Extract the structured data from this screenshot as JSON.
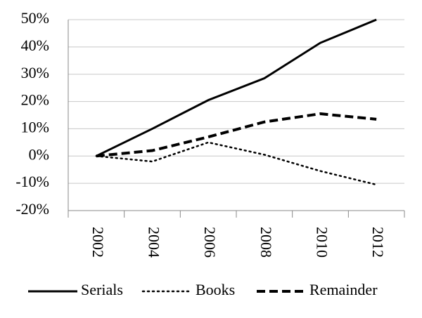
{
  "chart_data": {
    "type": "line",
    "categories": [
      "2002",
      "2004",
      "2006",
      "2008",
      "2010",
      "2012"
    ],
    "series": [
      {
        "name": "Serials",
        "color": "#000000",
        "dash": "solid",
        "values": [
          0,
          10,
          20.5,
          28.5,
          41.5,
          50
        ]
      },
      {
        "name": "Books",
        "color": "#000000",
        "dash": "dotted",
        "values": [
          0,
          -2,
          5,
          0.5,
          -5.5,
          -10.5
        ]
      },
      {
        "name": "Remainder",
        "color": "#000000",
        "dash": "dashed",
        "values": [
          0,
          2,
          7,
          12.5,
          15.5,
          13.5
        ]
      }
    ],
    "ylim": [
      -20,
      50
    ],
    "yticks": [
      {
        "value": -20,
        "label": "-20%"
      },
      {
        "value": -10,
        "label": "-10%"
      },
      {
        "value": 0,
        "label": "0%"
      },
      {
        "value": 10,
        "label": "10%"
      },
      {
        "value": 20,
        "label": "20%"
      },
      {
        "value": 30,
        "label": "30%"
      },
      {
        "value": 40,
        "label": "40%"
      },
      {
        "value": 50,
        "label": "50%"
      }
    ],
    "grid": true,
    "legend": "bottom"
  }
}
